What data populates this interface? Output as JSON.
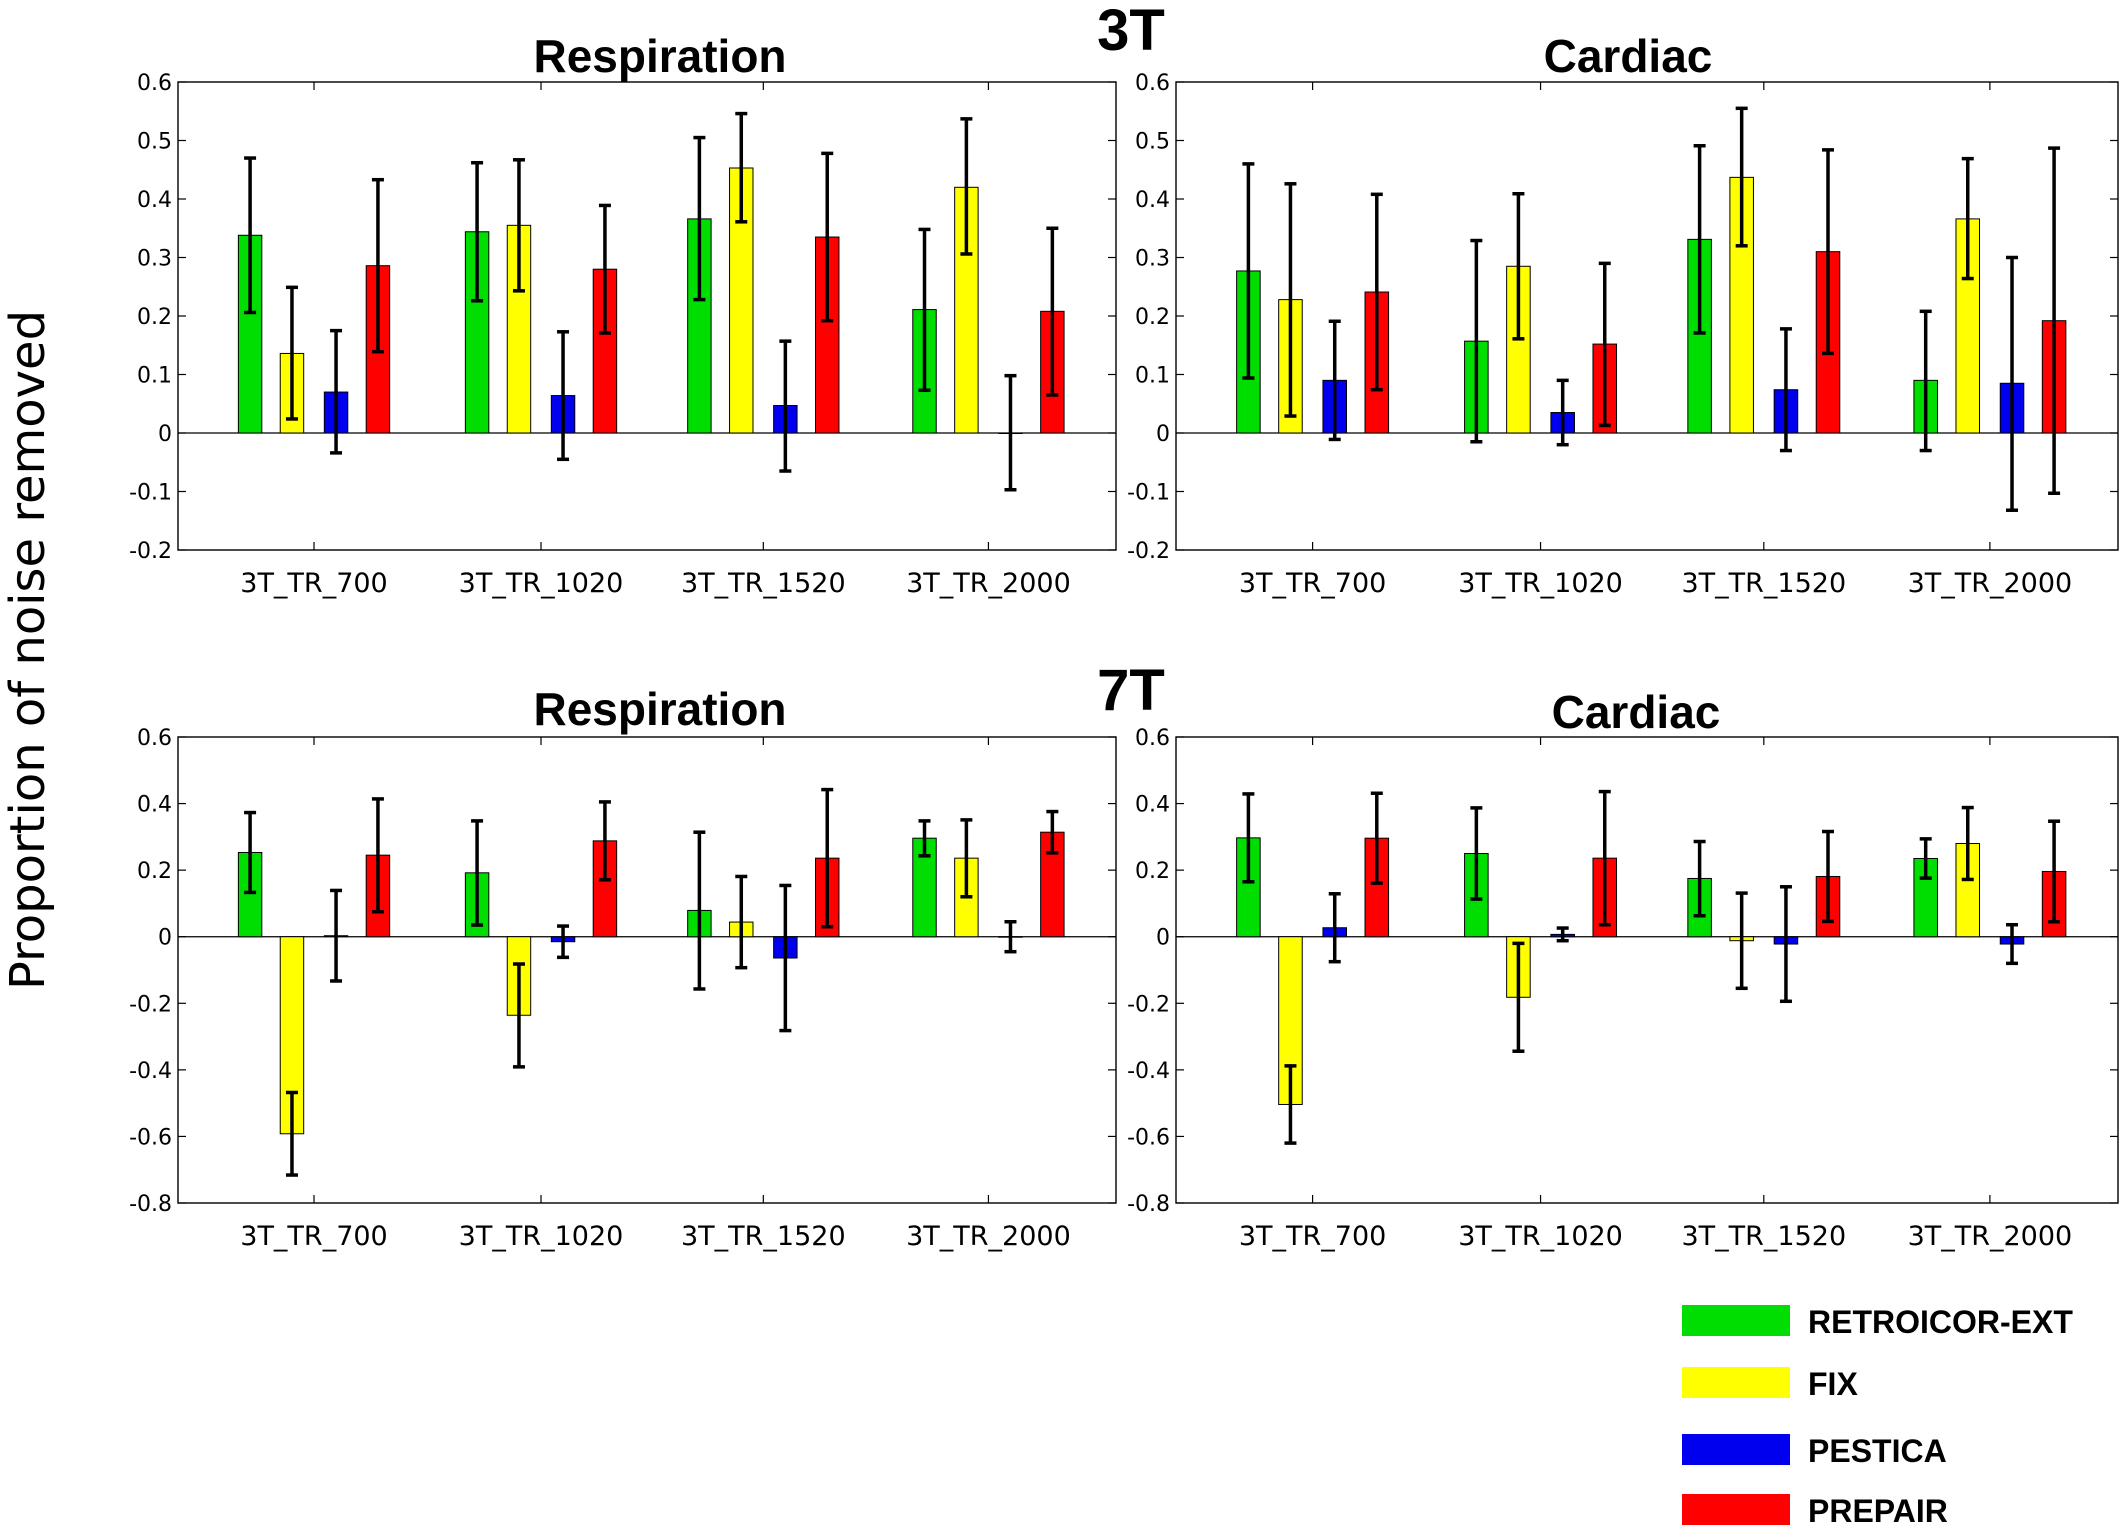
{
  "figure": {
    "ylabel": "Proportion of noise removed",
    "sections": [
      {
        "title": "3T"
      },
      {
        "title": "7T"
      }
    ]
  },
  "legend": [
    {
      "label": "RETROICOR-EXT",
      "color": "#00dd00"
    },
    {
      "label": "FIX",
      "color": "#ffff00"
    },
    {
      "label": "PESTICA",
      "color": "#0000ee"
    },
    {
      "label": "PREPAIR",
      "color": "#ff0000"
    }
  ],
  "chart_data": [
    {
      "type": "bar",
      "title": "Respiration",
      "section": "3T",
      "categories": [
        "3T_TR_700",
        "3T_TR_1020",
        "3T_TR_1520",
        "3T_TR_2000"
      ],
      "ylim": [
        -0.2,
        0.6
      ],
      "yticks": [
        "0.6",
        "0.5",
        "0.4",
        "0.3",
        "0.2",
        "0.1",
        "0",
        "-0.1",
        "-0.2"
      ],
      "series": [
        {
          "name": "RETROICOR-EXT",
          "values": [
            0.338,
            0.344,
            0.366,
            0.211
          ],
          "lower": [
            0.206,
            0.226,
            0.228,
            0.073
          ],
          "upper": [
            0.47,
            0.462,
            0.505,
            0.348
          ]
        },
        {
          "name": "FIX",
          "values": [
            0.136,
            0.355,
            0.453,
            0.42
          ],
          "lower": [
            0.024,
            0.243,
            0.361,
            0.306
          ],
          "upper": [
            0.249,
            0.467,
            0.546,
            0.537
          ]
        },
        {
          "name": "PESTICA",
          "values": [
            0.07,
            0.064,
            0.047,
            0.0
          ],
          "lower": [
            -0.034,
            -0.045,
            -0.065,
            -0.097
          ],
          "upper": [
            0.175,
            0.173,
            0.157,
            0.098
          ]
        },
        {
          "name": "PREPAIR",
          "values": [
            0.286,
            0.28,
            0.335,
            0.208
          ],
          "lower": [
            0.139,
            0.171,
            0.192,
            0.065
          ],
          "upper": [
            0.433,
            0.389,
            0.478,
            0.35
          ]
        }
      ]
    },
    {
      "type": "bar",
      "title": "Cardiac",
      "section": "3T",
      "categories": [
        "3T_TR_700",
        "3T_TR_1020",
        "3T_TR_1520",
        "3T_TR_2000"
      ],
      "ylim": [
        -0.2,
        0.6
      ],
      "yticks": [
        "0.6",
        "0.5",
        "0.4",
        "0.3",
        "0.2",
        "0.1",
        "0",
        "-0.1",
        "-0.2"
      ],
      "series": [
        {
          "name": "RETROICOR-EXT",
          "values": [
            0.277,
            0.157,
            0.331,
            0.09
          ],
          "lower": [
            0.094,
            -0.015,
            0.171,
            -0.03
          ],
          "upper": [
            0.46,
            0.329,
            0.491,
            0.208
          ]
        },
        {
          "name": "FIX",
          "values": [
            0.228,
            0.285,
            0.437,
            0.366
          ],
          "lower": [
            0.029,
            0.161,
            0.32,
            0.264
          ],
          "upper": [
            0.426,
            0.409,
            0.555,
            0.469
          ]
        },
        {
          "name": "PESTICA",
          "values": [
            0.09,
            0.035,
            0.074,
            0.085
          ],
          "lower": [
            -0.011,
            -0.02,
            -0.03,
            -0.132
          ],
          "upper": [
            0.191,
            0.09,
            0.178,
            0.3
          ]
        },
        {
          "name": "PREPAIR",
          "values": [
            0.241,
            0.152,
            0.31,
            0.192
          ],
          "lower": [
            0.074,
            0.013,
            0.136,
            -0.103
          ],
          "upper": [
            0.408,
            0.29,
            0.484,
            0.487
          ]
        }
      ]
    },
    {
      "type": "bar",
      "title": "Respiration",
      "section": "7T",
      "categories": [
        "3T_TR_700",
        "3T_TR_1020",
        "3T_TR_1520",
        "3T_TR_2000"
      ],
      "ylim": [
        -0.8,
        0.6
      ],
      "yticks": [
        "0.6",
        "0.4",
        "0.2",
        "0",
        "-0.2",
        "-0.4",
        "-0.6",
        "-0.8"
      ],
      "series": [
        {
          "name": "RETROICOR-EXT",
          "values": [
            0.253,
            0.192,
            0.079,
            0.296
          ],
          "lower": [
            0.133,
            0.035,
            -0.157,
            0.243
          ],
          "upper": [
            0.373,
            0.348,
            0.314,
            0.348
          ]
        },
        {
          "name": "FIX",
          "values": [
            -0.592,
            -0.236,
            0.044,
            0.236
          ],
          "lower": [
            -0.716,
            -0.391,
            -0.093,
            0.12
          ],
          "upper": [
            -0.468,
            -0.082,
            0.181,
            0.351
          ]
        },
        {
          "name": "PESTICA",
          "values": [
            0.003,
            -0.015,
            -0.064,
            0.0
          ],
          "lower": [
            -0.133,
            -0.062,
            -0.282,
            -0.045
          ],
          "upper": [
            0.139,
            0.032,
            0.154,
            0.045
          ]
        },
        {
          "name": "PREPAIR",
          "values": [
            0.245,
            0.288,
            0.236,
            0.314
          ],
          "lower": [
            0.075,
            0.171,
            0.03,
            0.252
          ],
          "upper": [
            0.414,
            0.405,
            0.442,
            0.376
          ]
        }
      ]
    },
    {
      "type": "bar",
      "title": "Cardiac",
      "section": "7T",
      "categories": [
        "3T_TR_700",
        "3T_TR_1020",
        "3T_TR_1520",
        "3T_TR_2000"
      ],
      "ylim": [
        -0.8,
        0.6
      ],
      "yticks": [
        "0.6",
        "0.4",
        "0.2",
        "0",
        "-0.2",
        "-0.4",
        "-0.6",
        "-0.8"
      ],
      "series": [
        {
          "name": "RETROICOR-EXT",
          "values": [
            0.297,
            0.25,
            0.175,
            0.235
          ],
          "lower": [
            0.165,
            0.113,
            0.063,
            0.176
          ],
          "upper": [
            0.429,
            0.387,
            0.286,
            0.294
          ]
        },
        {
          "name": "FIX",
          "values": [
            -0.504,
            -0.182,
            -0.012,
            0.28
          ],
          "lower": [
            -0.62,
            -0.344,
            -0.155,
            0.172
          ],
          "upper": [
            -0.388,
            -0.02,
            0.131,
            0.388
          ]
        },
        {
          "name": "PESTICA",
          "values": [
            0.027,
            0.007,
            -0.022,
            -0.022
          ],
          "lower": [
            -0.075,
            -0.012,
            -0.194,
            -0.08
          ],
          "upper": [
            0.129,
            0.026,
            0.15,
            0.036
          ]
        },
        {
          "name": "PREPAIR",
          "values": [
            0.296,
            0.236,
            0.181,
            0.196
          ],
          "lower": [
            0.161,
            0.036,
            0.046,
            0.045
          ],
          "upper": [
            0.431,
            0.436,
            0.316,
            0.347
          ]
        }
      ]
    }
  ]
}
